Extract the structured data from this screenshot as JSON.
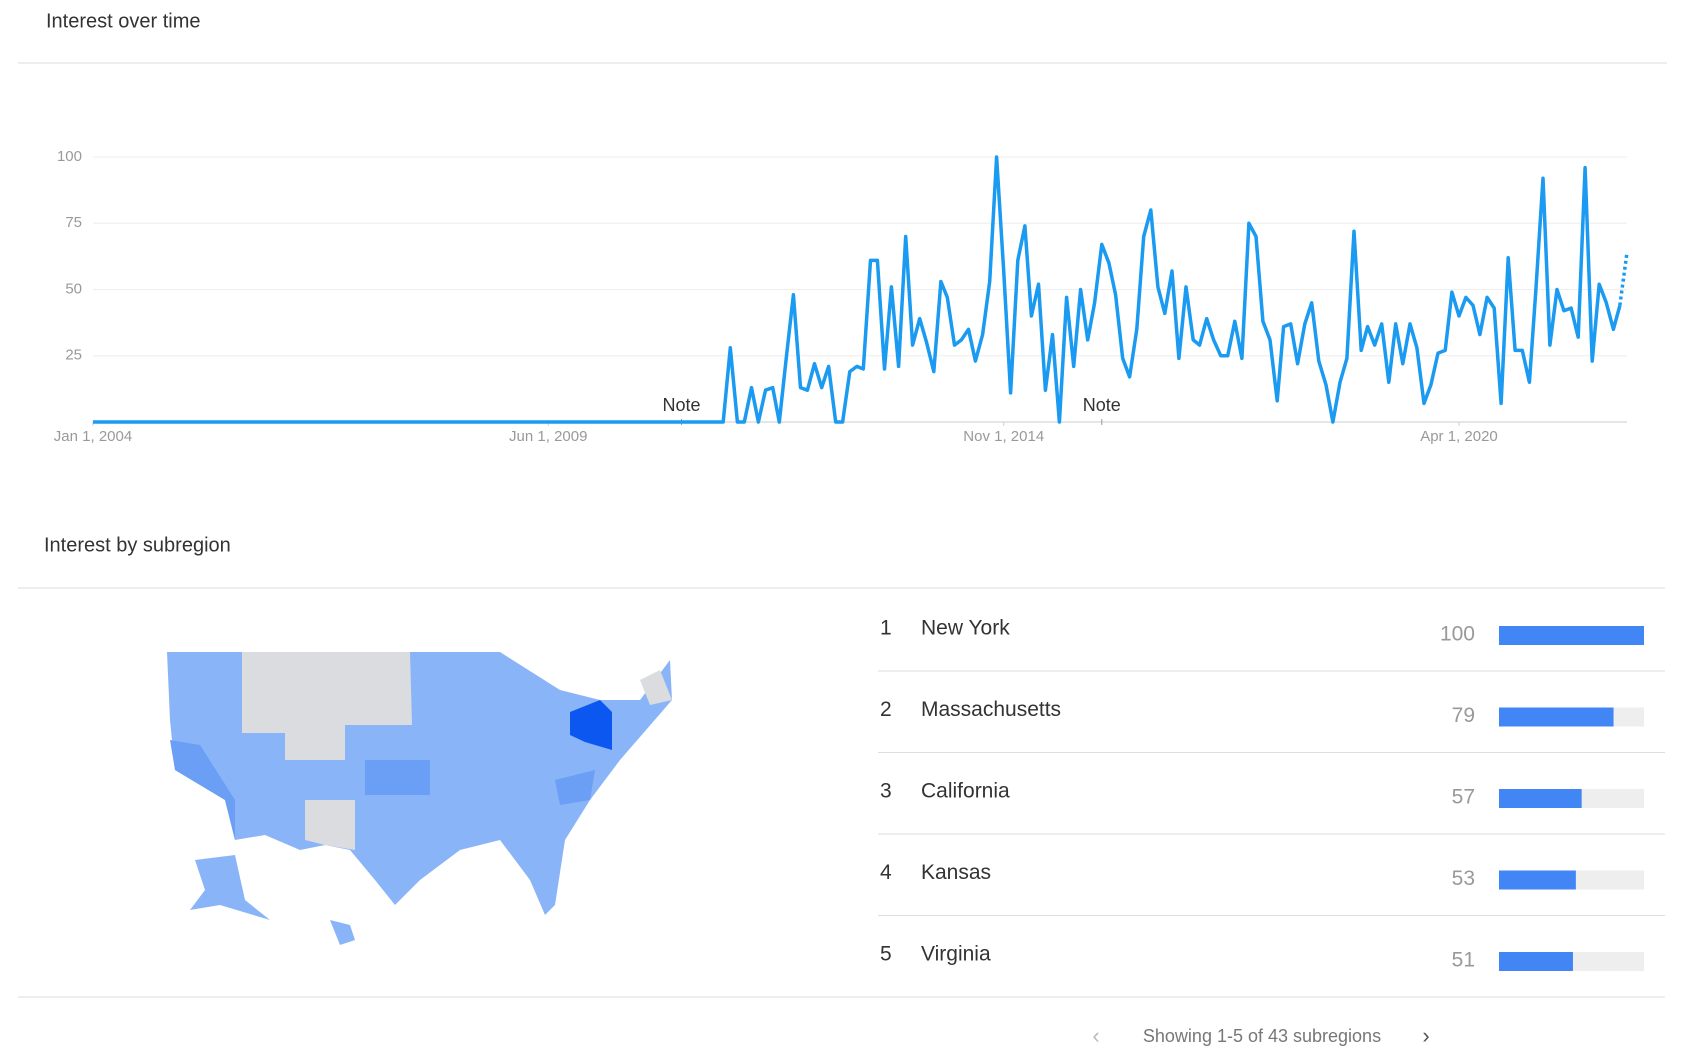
{
  "chart_data": [
    {
      "type": "line",
      "title": "Interest over time",
      "color": "#1a9af0",
      "partial_last": true,
      "grid": true,
      "x": [
        "2004-01-01",
        "2011-07-01",
        "2011-08-01",
        "2011-09-01",
        "2011-10-01",
        "2011-11-01",
        "2011-12-01",
        "2012-01-01",
        "2012-02-01",
        "2012-03-01",
        "2012-04-01",
        "2012-05-01",
        "2012-06-01",
        "2012-07-01",
        "2012-08-01",
        "2012-09-01",
        "2012-10-01",
        "2012-11-01",
        "2012-12-01",
        "2013-01-01",
        "2013-02-01",
        "2013-03-01",
        "2013-04-01",
        "2013-05-01",
        "2013-06-01",
        "2013-07-01",
        "2013-08-01",
        "2013-09-01",
        "2013-10-01",
        "2013-11-01",
        "2013-12-01",
        "2014-01-01",
        "2014-02-01",
        "2014-03-01",
        "2014-04-01",
        "2014-05-01",
        "2014-06-01",
        "2014-07-01",
        "2014-08-01",
        "2014-09-01",
        "2014-10-01",
        "2014-11-01",
        "2014-12-01",
        "2015-01-01",
        "2015-02-01",
        "2015-03-01",
        "2015-04-01",
        "2015-05-01",
        "2015-06-01",
        "2015-07-01",
        "2015-08-01",
        "2015-09-01",
        "2015-10-01",
        "2015-11-01",
        "2015-12-01",
        "2016-01-01",
        "2016-02-01",
        "2016-03-01",
        "2016-04-01",
        "2016-05-01",
        "2016-06-01",
        "2016-07-01",
        "2016-08-01",
        "2016-09-01",
        "2016-10-01",
        "2016-11-01",
        "2016-12-01",
        "2017-01-01",
        "2017-02-01",
        "2017-03-01",
        "2017-04-01",
        "2017-05-01",
        "2017-06-01",
        "2017-07-01",
        "2017-08-01",
        "2017-09-01",
        "2017-10-01",
        "2017-11-01",
        "2017-12-01",
        "2018-01-01",
        "2018-02-01",
        "2018-03-01",
        "2018-04-01",
        "2018-05-01",
        "2018-06-01",
        "2018-07-01",
        "2018-08-01",
        "2018-09-01",
        "2018-10-01",
        "2018-11-01",
        "2018-12-01",
        "2019-01-01",
        "2019-02-01",
        "2019-03-01",
        "2019-04-01",
        "2019-05-01",
        "2019-06-01",
        "2019-07-01",
        "2019-08-01",
        "2019-09-01",
        "2019-10-01",
        "2019-11-01",
        "2019-12-01",
        "2020-01-01",
        "2020-02-01",
        "2020-03-01",
        "2020-04-01",
        "2020-05-01",
        "2020-06-01",
        "2020-07-01",
        "2020-08-01",
        "2020-09-01",
        "2020-10-01",
        "2020-11-01",
        "2020-12-01",
        "2021-01-01",
        "2021-02-01",
        "2021-03-01",
        "2021-04-01",
        "2021-05-01",
        "2021-06-01",
        "2021-07-01",
        "2021-08-01",
        "2021-09-01",
        "2021-10-01",
        "2021-11-01",
        "2021-12-01",
        "2022-01-01",
        "2022-02-01",
        "2022-03-01",
        "2022-04-01"
      ],
      "values": [
        0,
        0,
        28,
        0,
        0,
        13,
        0,
        12,
        13,
        0,
        25,
        48,
        13,
        12,
        22,
        13,
        21,
        0,
        0,
        19,
        21,
        20,
        61,
        61,
        20,
        51,
        21,
        70,
        29,
        39,
        30,
        19,
        53,
        47,
        29,
        31,
        35,
        23,
        33,
        53,
        100,
        57,
        11,
        61,
        74,
        40,
        52,
        12,
        33,
        0,
        47,
        21,
        50,
        31,
        45,
        67,
        60,
        48,
        24,
        17,
        35,
        70,
        80,
        51,
        41,
        57,
        24,
        51,
        31,
        29,
        39,
        31,
        25,
        25,
        38,
        24,
        75,
        70,
        38,
        31,
        8,
        36,
        37,
        22,
        37,
        45,
        23,
        14,
        0,
        15,
        24,
        72,
        27,
        36,
        29,
        37,
        15,
        37,
        22,
        37,
        28,
        7,
        14,
        26,
        27,
        49,
        40,
        47,
        44,
        33,
        47,
        43,
        7,
        62,
        27,
        27,
        15,
        50,
        92,
        29,
        50,
        42,
        43,
        32,
        96,
        23,
        52,
        45,
        35,
        44,
        64
      ],
      "xlim": [
        "2004-01-01",
        "2022-04-01"
      ],
      "xticks": [
        {
          "value": "2004-01-01",
          "label": "Jan 1, 2004"
        },
        {
          "value": "2009-06-01",
          "label": "Jun 1, 2009"
        },
        {
          "value": "2014-11-01",
          "label": "Nov 1, 2014"
        },
        {
          "value": "2020-04-01",
          "label": "Apr 1, 2020"
        }
      ],
      "ylim": [
        0,
        100
      ],
      "yticks": [
        25,
        50,
        75,
        100
      ],
      "annotations": [
        {
          "x": "2011-01-01",
          "label": "Note"
        },
        {
          "x": "2016-01-01",
          "label": "Note"
        }
      ]
    },
    {
      "type": "bar",
      "orientation": "horizontal",
      "title": "Interest by subregion",
      "color": "#4285f4",
      "ranks": [
        1,
        2,
        3,
        4,
        5
      ],
      "categories": [
        "New York",
        "Massachusetts",
        "California",
        "Kansas",
        "Virginia"
      ],
      "values": [
        100,
        79,
        57,
        53,
        51
      ],
      "xlim": [
        0,
        100
      ]
    }
  ],
  "pagination": {
    "text": "Showing 1-5 of 43 subregions"
  }
}
